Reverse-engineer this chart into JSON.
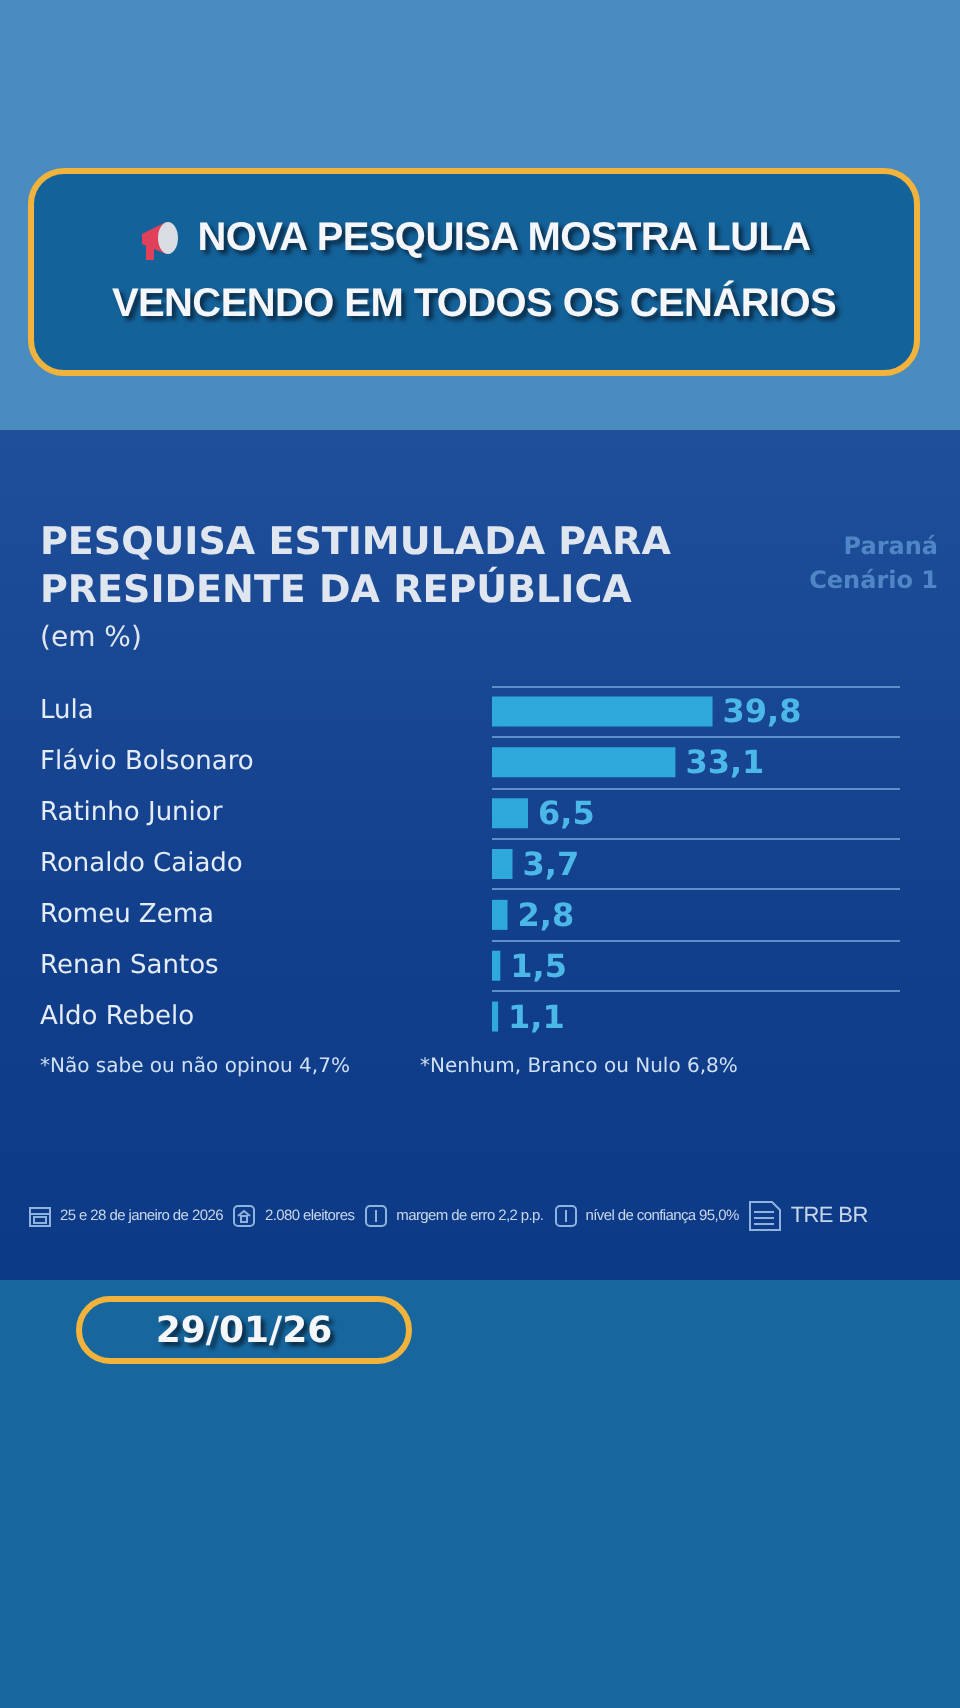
{
  "chart_data": {
    "type": "bar",
    "orientation": "horizontal",
    "title": "PESQUISA ESTIMULADA PARA PRESIDENTE DA REPÚBLICA",
    "subtitle": "(em %)",
    "categories": [
      "Lula",
      "Flávio Bolsonaro",
      "Ratinho Junior",
      "Ronaldo Caiado",
      "Romeu Zema",
      "Renan Santos",
      "Aldo Rebelo"
    ],
    "values": [
      39.8,
      33.1,
      6.5,
      3.7,
      2.8,
      1.5,
      1.1
    ],
    "value_labels": [
      "39,8",
      "33,1",
      "6,5",
      "3,7",
      "2,8",
      "1,5",
      "1,1"
    ],
    "color": "#2fa8dc",
    "grid": "y",
    "annotations": [
      "NOVA PESQUISA MOSTRA LULA VENCENDO EM TODOS OS CENÁRIOS",
      "Paraná",
      "Cenário 1",
      "*Não sabe ou não opinou 4,7%",
      "*Nenhum, Branco ou Nulo 6,8%",
      "25 e 28 de janeiro de 2026",
      "2.080 eleitores",
      "margem de erro 2,2 p.p.",
      "nível de confiança 95,0%",
      "TRE BR",
      "29/01/26"
    ]
  }
}
